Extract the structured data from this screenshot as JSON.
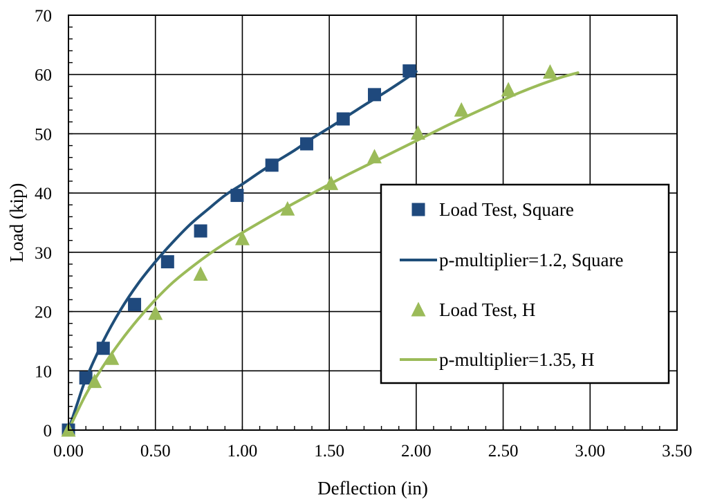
{
  "chart_data": {
    "type": "scatter",
    "xlabel": "Deflection (in)",
    "ylabel": "Load (kip)",
    "xlim": [
      0,
      3.5
    ],
    "ylim": [
      0,
      70
    ],
    "x_ticks": [
      0,
      0.5,
      1.0,
      1.5,
      2.0,
      2.5,
      3.0,
      3.5
    ],
    "x_tick_labels": [
      "0.00",
      "0.50",
      "1.00",
      "1.50",
      "2.00",
      "2.50",
      "3.00",
      "3.50"
    ],
    "y_ticks": [
      0,
      10,
      20,
      30,
      40,
      50,
      60,
      70
    ],
    "y_tick_labels": [
      "0",
      "10",
      "20",
      "30",
      "40",
      "50",
      "60",
      "70"
    ],
    "grid": true,
    "legend_position": "center-right",
    "series": [
      {
        "name": "Load Test, Square",
        "kind": "markers",
        "marker": "square",
        "color": "#1F497D",
        "x": [
          0.0,
          0.1,
          0.2,
          0.38,
          0.57,
          0.76,
          0.97,
          1.17,
          1.37,
          1.58,
          1.76,
          1.96
        ],
        "y": [
          0.0,
          8.8,
          13.8,
          21.2,
          28.4,
          33.6,
          39.6,
          44.7,
          48.3,
          52.5,
          56.6,
          60.6
        ]
      },
      {
        "name": "p-multiplier=1.2, Square",
        "kind": "line",
        "color": "#1F4E79",
        "x": [
          0.0,
          0.05,
          0.1,
          0.2,
          0.3,
          0.4,
          0.5,
          0.6,
          0.7,
          0.8,
          0.9,
          1.0,
          1.1,
          1.2,
          1.3,
          1.4,
          1.5,
          1.6,
          1.7,
          1.8,
          1.9,
          2.0
        ],
        "y": [
          0.0,
          4.4,
          8.6,
          15.0,
          20.3,
          24.7,
          28.4,
          31.7,
          34.7,
          37.2,
          39.6,
          41.5,
          43.5,
          45.4,
          47.2,
          49.2,
          51.0,
          52.9,
          54.8,
          56.6,
          58.5,
          60.5
        ]
      },
      {
        "name": "Load Test, H",
        "kind": "markers",
        "marker": "triangle",
        "color": "#9BBB59",
        "x": [
          0.0,
          0.15,
          0.25,
          0.5,
          0.76,
          1.0,
          1.26,
          1.51,
          1.76,
          2.01,
          2.26,
          2.53,
          2.77
        ],
        "y": [
          0.0,
          8.2,
          12.1,
          19.7,
          26.3,
          32.3,
          37.3,
          41.6,
          46.1,
          50.1,
          54.0,
          57.4,
          60.4
        ]
      },
      {
        "name": "p-multiplier=1.35, H",
        "kind": "line",
        "color": "#9BBB59",
        "x": [
          0.0,
          0.1,
          0.2,
          0.3,
          0.4,
          0.5,
          0.6,
          0.7,
          0.8,
          0.9,
          1.0,
          1.2,
          1.4,
          1.6,
          1.8,
          2.0,
          2.2,
          2.4,
          2.6,
          2.8,
          2.93
        ],
        "y": [
          0.0,
          6.0,
          10.8,
          15.0,
          18.7,
          22.0,
          24.9,
          27.3,
          29.5,
          31.5,
          33.3,
          36.7,
          39.9,
          43.0,
          45.9,
          48.8,
          51.7,
          54.4,
          57.0,
          59.2,
          60.3
        ]
      }
    ]
  }
}
